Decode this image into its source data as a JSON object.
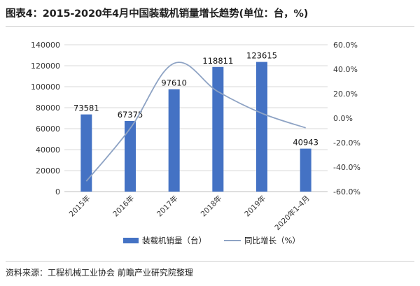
{
  "title": "图表4：2015-2020年4月中国装载机销量增长趋势(单位：台，%)",
  "source": "资料来源：工程机械工业协会 前瞻产业研究院整理",
  "chart_data": {
    "type": "bar",
    "categories": [
      "2015年",
      "2016年",
      "2017年",
      "2018年",
      "2019年",
      "2020年1-4月"
    ],
    "series": [
      {
        "name": "装载机销量（台）",
        "type": "bar",
        "axis": "left",
        "color": "#4472C4",
        "values": [
          73581,
          67375,
          97610,
          118811,
          123615,
          40943
        ]
      },
      {
        "name": "同比增长（%）",
        "type": "line",
        "axis": "right",
        "color": "#8ea3c4",
        "smooth": true,
        "values": [
          -51.5,
          -8.4,
          44.8,
          21.7,
          4.0,
          -7.9
        ]
      }
    ],
    "y_left": {
      "ylim": [
        0,
        140000
      ],
      "ticks": [
        "0",
        "20000",
        "40000",
        "60000",
        "80000",
        "100000",
        "120000",
        "140000"
      ]
    },
    "y_right": {
      "ylim": [
        -60,
        60
      ],
      "ticks": [
        "-60.0%",
        "-40.0%",
        "-20.0%",
        "0.0%",
        "20.0%",
        "40.0%",
        "60.0%"
      ]
    },
    "data_labels": [
      "73581",
      "67375",
      "97610",
      "118811",
      "123615",
      "40943"
    ],
    "grid": "horizontal",
    "legend_position": "bottom"
  }
}
